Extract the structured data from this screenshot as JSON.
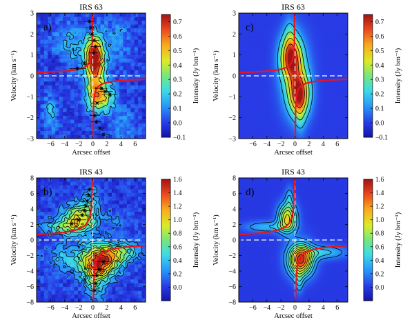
{
  "figure": {
    "panels": [
      {
        "id": "a",
        "title": "IRS 63",
        "label": "a)",
        "kind": "observed",
        "x_range": [
          -8,
          7.5
        ],
        "y_range": [
          -3,
          3
        ],
        "x_ticks": [
          -6,
          -4,
          -2,
          0,
          2,
          4,
          6
        ],
        "y_ticks": [
          -3,
          -2,
          -1,
          0,
          1,
          2,
          3
        ],
        "xlabel": "Arcsec offset",
        "ylabel": "Velocity (km s⁻¹)",
        "blobs": [
          {
            "x": 0.3,
            "y": 0.9,
            "sx": 1.0,
            "sy": 0.7,
            "amp": 0.72
          },
          {
            "x": 1.1,
            "y": -1.0,
            "sx": 1.3,
            "sy": 0.5,
            "amp": 0.48
          },
          {
            "x": 0.2,
            "y": -0.2,
            "sx": 0.8,
            "sy": 0.9,
            "amp": 0.25
          },
          {
            "x": -3.5,
            "y": 1.4,
            "sx": 1.6,
            "sy": 0.8,
            "amp": 0.15
          },
          {
            "x": 3.5,
            "y": 1.8,
            "sx": 1.2,
            "sy": 0.7,
            "amp": 0.12
          },
          {
            "x": -6.0,
            "y": -1.8,
            "sx": 0.7,
            "sy": 0.5,
            "amp": 0.18
          },
          {
            "x": 4.5,
            "y": -2.3,
            "sx": 1.2,
            "sy": 0.5,
            "amp": 0.1
          },
          {
            "x": -5.0,
            "y": 0.6,
            "sx": 1.0,
            "sy": 0.4,
            "amp": -0.08
          }
        ],
        "noise": 0.06,
        "contours": [
          0.15,
          0.3,
          0.45,
          0.6
        ],
        "curve_c": 0.45,
        "points": [
          {
            "x": -0.5,
            "y": 2.6
          },
          {
            "x": -0.3,
            "y": 2.3
          },
          {
            "x": -0.1,
            "y": 2.0
          },
          {
            "x": 0.2,
            "y": 1.7
          },
          {
            "x": 0.4,
            "y": 1.4
          },
          {
            "x": 0.1,
            "y": 1.1
          },
          {
            "x": -1.2,
            "y": 0.6
          },
          {
            "x": -2.2,
            "y": 0.35
          },
          {
            "x": 1.2,
            "y": -0.6
          },
          {
            "x": 1.8,
            "y": -0.75
          },
          {
            "x": 2.4,
            "y": -0.9
          },
          {
            "x": 0.6,
            "y": -1.3
          },
          {
            "x": 0.3,
            "y": -1.9
          },
          {
            "x": 0.5,
            "y": -2.2
          },
          {
            "x": 1.0,
            "y": -2.5
          },
          {
            "x": 1.5,
            "y": -2.8
          }
        ],
        "colorbar": {
          "vmin": -0.1,
          "vmax": 0.75,
          "ticks": [
            -0.1,
            0.0,
            0.1,
            0.2,
            0.3,
            0.4,
            0.5,
            0.6,
            0.7
          ],
          "tick_labels": [
            "−0.1",
            "0.0",
            "0.1",
            "0.2",
            "0.3",
            "0.4",
            "0.5",
            "0.6",
            "0.7"
          ],
          "label": "Intensity (Jy bm⁻¹)"
        }
      },
      {
        "id": "c",
        "title": "IRS 63",
        "label": "c)",
        "kind": "model",
        "x_range": [
          -8,
          7.5
        ],
        "y_range": [
          -3,
          3
        ],
        "x_ticks": [
          -6,
          -4,
          -2,
          0,
          2,
          4,
          6
        ],
        "y_ticks": [
          -3,
          -2,
          -1,
          0,
          1,
          2,
          3
        ],
        "xlabel": "Arcsec offset",
        "ylabel": "Velocity (km s⁻¹)",
        "blobs": [
          {
            "x": -0.6,
            "y": 0.9,
            "sx": 1.0,
            "sy": 0.7,
            "amp": 0.62
          },
          {
            "x": 0.6,
            "y": -0.9,
            "sx": 1.0,
            "sy": 0.7,
            "amp": 0.62
          },
          {
            "x": 0.0,
            "y": 0.0,
            "sx": 1.4,
            "sy": 1.2,
            "amp": 0.25
          },
          {
            "x": -0.8,
            "y": 2.0,
            "sx": 0.5,
            "sy": 0.6,
            "amp": 0.12
          },
          {
            "x": 0.8,
            "y": -2.0,
            "sx": 0.5,
            "sy": 0.6,
            "amp": 0.12
          }
        ],
        "noise": 0.0,
        "contours": [
          0.15,
          0.3,
          0.45,
          0.6
        ],
        "curve_c": 0.45,
        "points": [],
        "colorbar": {
          "vmin": -0.1,
          "vmax": 0.75,
          "ticks": [
            -0.1,
            0.0,
            0.1,
            0.2,
            0.3,
            0.4,
            0.5,
            0.6,
            0.7
          ],
          "tick_labels": [
            "−0.1",
            "0.0",
            "0.1",
            "0.2",
            "0.3",
            "0.4",
            "0.5",
            "0.6",
            "0.7"
          ],
          "label": "Intensity (Jy bm⁻¹)"
        }
      },
      {
        "id": "b",
        "title": "IRS 43",
        "label": "b)",
        "kind": "observed",
        "x_range": [
          -8,
          7.5
        ],
        "y_range": [
          -8,
          8
        ],
        "x_ticks": [
          -6,
          -4,
          -2,
          0,
          2,
          4,
          6
        ],
        "y_ticks": [
          -8,
          -6,
          -4,
          -2,
          0,
          2,
          4,
          6,
          8
        ],
        "xlabel": "Arcsec offset",
        "ylabel": "Velocity (km s⁻¹)",
        "blobs": [
          {
            "x": -2.0,
            "y": 2.6,
            "sx": 1.6,
            "sy": 1.3,
            "amp": 1.05
          },
          {
            "x": -5.0,
            "y": 1.6,
            "sx": 1.6,
            "sy": 0.7,
            "amp": 0.45
          },
          {
            "x": 1.0,
            "y": -2.8,
            "sx": 1.8,
            "sy": 1.4,
            "amp": 1.45
          },
          {
            "x": 4.0,
            "y": -1.6,
            "sx": 2.0,
            "sy": 0.9,
            "amp": 0.55
          },
          {
            "x": 0.3,
            "y": -5.5,
            "sx": 1.0,
            "sy": 1.6,
            "amp": 0.5
          },
          {
            "x": -0.3,
            "y": 5.0,
            "sx": 0.8,
            "sy": 1.3,
            "amp": 0.4
          },
          {
            "x": -4.0,
            "y": -2.5,
            "sx": 2.0,
            "sy": 1.3,
            "amp": 0.35
          },
          {
            "x": 3.5,
            "y": 2.5,
            "sx": 1.8,
            "sy": 1.0,
            "amp": 0.15
          }
        ],
        "noise": 0.12,
        "contours": [
          0.2,
          0.35,
          0.5,
          0.65,
          0.8,
          0.95,
          1.1,
          1.25,
          1.4
        ],
        "curve_c": 2.0,
        "points": [
          {
            "x": -0.5,
            "y": 6.5
          },
          {
            "x": -0.6,
            "y": 5.8
          },
          {
            "x": -0.8,
            "y": 5.0
          },
          {
            "x": -1.0,
            "y": 4.4
          },
          {
            "x": -1.2,
            "y": 3.8
          },
          {
            "x": -1.5,
            "y": 3.2
          },
          {
            "x": -2.0,
            "y": 2.6
          },
          {
            "x": -3.0,
            "y": 2.1
          },
          {
            "x": 0.3,
            "y": -6.5
          },
          {
            "x": 0.4,
            "y": -5.6
          },
          {
            "x": 0.6,
            "y": -4.6
          },
          {
            "x": 0.9,
            "y": -3.8
          },
          {
            "x": 1.5,
            "y": -2.8
          }
        ],
        "colorbar": {
          "vmin": -0.2,
          "vmax": 1.6,
          "ticks": [
            0.0,
            0.2,
            0.4,
            0.6,
            0.8,
            1.0,
            1.2,
            1.4,
            1.6
          ],
          "tick_labels": [
            "0.0",
            "0.2",
            "0.4",
            "0.6",
            "0.8",
            "1.0",
            "1.2",
            "1.4",
            "1.6"
          ],
          "label": "Intensity (Jy bm⁻¹)"
        }
      },
      {
        "id": "d",
        "title": "IRS 43",
        "label": "d)",
        "kind": "model",
        "x_range": [
          -8,
          7.5
        ],
        "y_range": [
          -8,
          8
        ],
        "x_ticks": [
          -6,
          -4,
          -2,
          0,
          2,
          4,
          6
        ],
        "y_ticks": [
          -8,
          -6,
          -4,
          -2,
          0,
          2,
          4,
          6,
          8
        ],
        "xlabel": "Arcsec offset",
        "ylabel": "Velocity (km s⁻¹)",
        "blobs": [
          {
            "x": -1.1,
            "y": 2.8,
            "sx": 0.9,
            "sy": 1.3,
            "amp": 1.0
          },
          {
            "x": 0.8,
            "y": -2.6,
            "sx": 1.2,
            "sy": 1.4,
            "amp": 1.45
          },
          {
            "x": -4.0,
            "y": 1.7,
            "sx": 2.3,
            "sy": 0.5,
            "amp": 0.35
          },
          {
            "x": 4.0,
            "y": -1.6,
            "sx": 2.3,
            "sy": 0.6,
            "amp": 0.4
          },
          {
            "x": -0.8,
            "y": 5.5,
            "sx": 0.4,
            "sy": 1.0,
            "amp": 0.3
          },
          {
            "x": 0.6,
            "y": -5.5,
            "sx": 0.4,
            "sy": 1.0,
            "amp": 0.3
          }
        ],
        "noise": 0.0,
        "contours": [
          0.2,
          0.35,
          0.5,
          0.65,
          0.8,
          0.95,
          1.1,
          1.25,
          1.4
        ],
        "curve_c": 2.0,
        "points": [],
        "colorbar": {
          "vmin": -0.2,
          "vmax": 1.6,
          "ticks": [
            0.0,
            0.2,
            0.4,
            0.6,
            0.8,
            1.0,
            1.2,
            1.4,
            1.6
          ],
          "tick_labels": [
            "0.0",
            "0.2",
            "0.4",
            "0.6",
            "0.8",
            "1.0",
            "1.2",
            "1.4",
            "1.6"
          ],
          "label": "Intensity (Jy bm⁻¹)"
        }
      }
    ]
  }
}
